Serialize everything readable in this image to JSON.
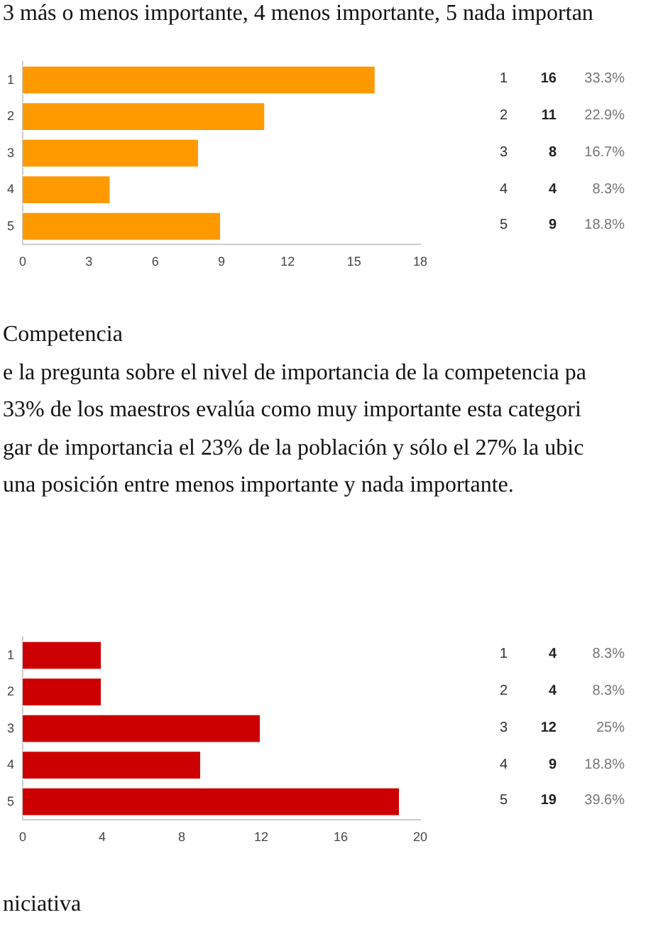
{
  "chart_data": [
    {
      "type": "bar",
      "orientation": "horizontal",
      "categories": [
        "1",
        "2",
        "3",
        "4",
        "5"
      ],
      "values": [
        16,
        11,
        8,
        4,
        9
      ],
      "color": "#ff9900",
      "xlim": [
        0,
        18
      ],
      "xticks": [
        0,
        3,
        6,
        9,
        12,
        15,
        18
      ],
      "grid": false,
      "legend": false,
      "data_labels": true,
      "annotations": [
        "3 más o menos importante, 4 menos importante, 5 nada importan",
        "33.3%",
        "22.9%",
        "16.7%",
        "8.3%",
        "18.8%"
      ]
    },
    {
      "type": "bar",
      "orientation": "horizontal",
      "categories": [
        "1",
        "2",
        "3",
        "4",
        "5"
      ],
      "values": [
        4,
        4,
        12,
        9,
        19
      ],
      "color": "#cc0000",
      "xlim": [
        0,
        20
      ],
      "xticks": [
        0,
        4,
        8,
        12,
        16,
        20
      ],
      "grid": false,
      "legend": false,
      "data_labels": true,
      "annotations": [
        "Competencia",
        "e la pregunta sobre el nivel de importancia de la competencia pa",
        "33% de los maestros evalúa como muy importante esta categori",
        "gar de importancia el 23% de la población y sólo el 27% la ubic",
        "una posición entre menos importante y nada importante.",
        "niciativa",
        "8.3%",
        "8.3%",
        "25%",
        "18.8%",
        "39.6%"
      ]
    }
  ]
}
